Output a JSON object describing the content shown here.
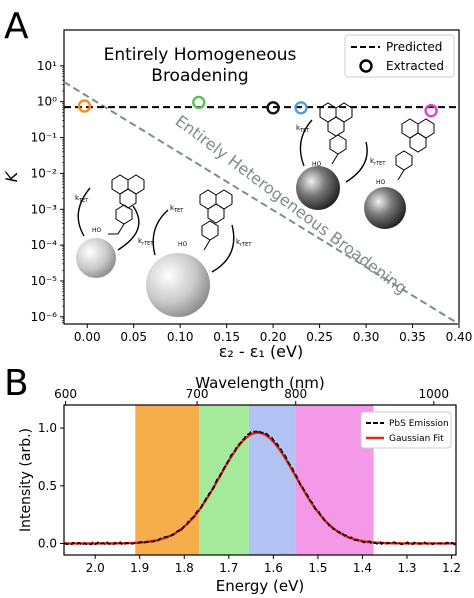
{
  "panels": {
    "a": {
      "letter": "A"
    },
    "b": {
      "letter": "B"
    }
  },
  "chart_data": [
    {
      "type": "scatter",
      "panel": "A",
      "xlabel": "ε₂ - ε₁ (eV)",
      "ylabel": "K",
      "xlim": [
        -0.025,
        0.4
      ],
      "ylim_log10": [
        -6.2,
        2.0
      ],
      "log_scale_y": true,
      "x_ticks": [
        "0.00",
        "0.05",
        "0.10",
        "0.15",
        "0.20",
        "0.25",
        "0.30",
        "0.35",
        "0.40"
      ],
      "x_tick_values": [
        0.0,
        0.05,
        0.1,
        0.15,
        0.2,
        0.25,
        0.3,
        0.35,
        0.4
      ],
      "y_ticks": [
        "10¹",
        "10⁰",
        "10⁻¹",
        "10⁻²",
        "10⁻³",
        "10⁻⁴",
        "10⁻⁵",
        "10⁻⁶"
      ],
      "y_tick_exponents": [
        1,
        0,
        -1,
        -2,
        -3,
        -4,
        -5,
        -6
      ],
      "predicted_line": {
        "name": "Predicted",
        "log10_y": -0.15,
        "style": "dashed",
        "color": "#000000"
      },
      "heterogeneous_line": {
        "x": [
          -0.025,
          0.4
        ],
        "log10_y": [
          0.55,
          -6.2
        ],
        "style": "dashed",
        "color": "#7f8c8d"
      },
      "points": [
        {
          "x": -0.003,
          "log10_y": -0.12,
          "color": "#f28e2b"
        },
        {
          "x": 0.12,
          "log10_y": -0.02,
          "color": "#59c159"
        },
        {
          "x": 0.2,
          "log10_y": -0.17,
          "color": "#111111"
        },
        {
          "x": 0.23,
          "log10_y": -0.17,
          "color": "#4e9ede"
        },
        {
          "x": 0.37,
          "log10_y": -0.25,
          "color": "#e23cd4"
        }
      ],
      "legend": {
        "placement": "top-right",
        "items": [
          {
            "label": "Predicted",
            "kind": "dashed"
          },
          {
            "label": "Extracted",
            "kind": "circle"
          }
        ]
      },
      "annotations": {
        "homogeneous_line1": "Entirely Homogeneous",
        "homogeneous_line2": "Broadening",
        "heterogeneous": "Entirely Heterogeneous Broadening",
        "ktet": "k",
        "ktet_sub": "TET",
        "krtet": "k",
        "krtet_sub": "rTET",
        "ho": "HO",
        "o": "O"
      }
    },
    {
      "type": "line",
      "panel": "B",
      "xlabel": "Energy (eV)",
      "x2label": "Wavelength (nm)",
      "ylabel": "Intensity (arb.)",
      "xlim": [
        2.07,
        1.19
      ],
      "ylim": [
        -0.1,
        1.2
      ],
      "x_ticks": [
        "2.0",
        "1.9",
        "1.8",
        "1.7",
        "1.6",
        "1.5",
        "1.4",
        "1.3",
        "1.2"
      ],
      "x_tick_values": [
        2.0,
        1.9,
        1.8,
        1.7,
        1.6,
        1.5,
        1.4,
        1.3,
        1.2
      ],
      "x2_ticks": [
        "600",
        "700",
        "800",
        "1000"
      ],
      "x2_tick_values": [
        600,
        700,
        800,
        1000
      ],
      "y_ticks": [
        "0.0",
        "0.5",
        "1.0"
      ],
      "y_tick_values": [
        0.0,
        0.5,
        1.0
      ],
      "bands": [
        {
          "from": 1.91,
          "to": 1.767,
          "color": "#f5a53a"
        },
        {
          "from": 1.767,
          "to": 1.655,
          "color": "#9be88f"
        },
        {
          "from": 1.655,
          "to": 1.55,
          "color": "#aabcf2"
        },
        {
          "from": 1.55,
          "to": 1.375,
          "color": "#f38ee6"
        }
      ],
      "series": [
        {
          "name": "PbS Emission",
          "style": "dashed",
          "color": "#000000",
          "center": 1.635,
          "sigma": 0.085,
          "amplitude": 0.975,
          "baseline": 0.0
        },
        {
          "name": "Gaussian Fit",
          "style": "solid",
          "color": "#e0271f",
          "center": 1.635,
          "sigma": 0.085,
          "amplitude": 0.96,
          "baseline": 0.0
        }
      ],
      "legend": {
        "placement": "top-right"
      }
    }
  ]
}
